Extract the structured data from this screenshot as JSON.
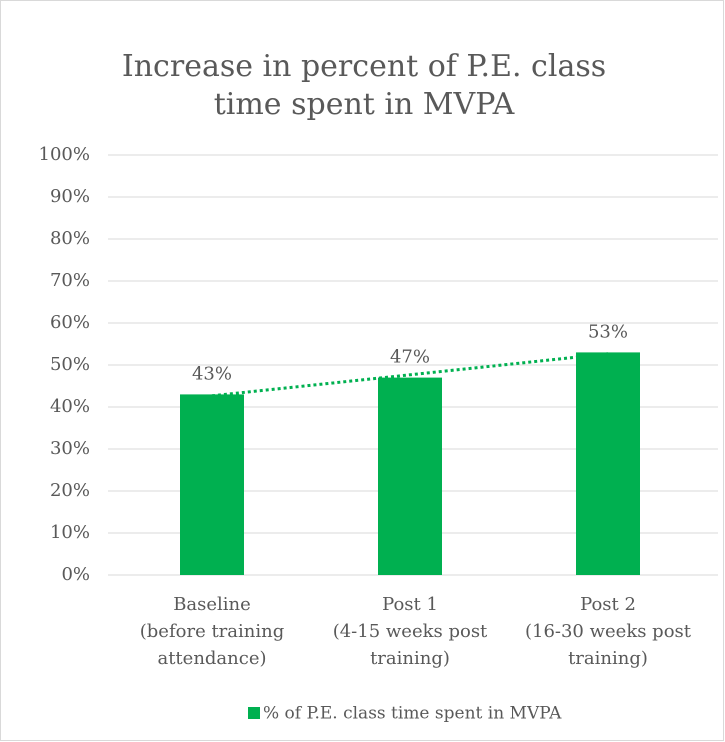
{
  "chart_data": {
    "type": "bar",
    "title": [
      "Increase in percent of P.E. class",
      "time spent in MVPA"
    ],
    "categories": [
      [
        "Baseline",
        "(before training",
        "attendance)"
      ],
      [
        "Post 1",
        "(4-15 weeks post",
        "training)"
      ],
      [
        "Post 2",
        "(16-30 weeks post",
        "training)"
      ]
    ],
    "series": [
      {
        "name": "% of P.E. class time spent in MVPA",
        "color": "#00b050",
        "values": [
          43,
          47,
          53
        ],
        "value_labels": [
          "43%",
          "47%",
          "53%"
        ]
      }
    ],
    "ylim": [
      0,
      100
    ],
    "yticks": [
      {
        "value": 0,
        "label": "0%"
      },
      {
        "value": 10,
        "label": "10%"
      },
      {
        "value": 20,
        "label": "20%"
      },
      {
        "value": 30,
        "label": "30%"
      },
      {
        "value": 40,
        "label": "40%"
      },
      {
        "value": 50,
        "label": "50%"
      },
      {
        "value": 60,
        "label": "60%"
      },
      {
        "value": 70,
        "label": "70%"
      },
      {
        "value": 80,
        "label": "80%"
      },
      {
        "value": 90,
        "label": "90%"
      },
      {
        "value": 100,
        "label": "100%"
      }
    ],
    "grid": true,
    "trendline": "linear",
    "legend": "bottom"
  }
}
